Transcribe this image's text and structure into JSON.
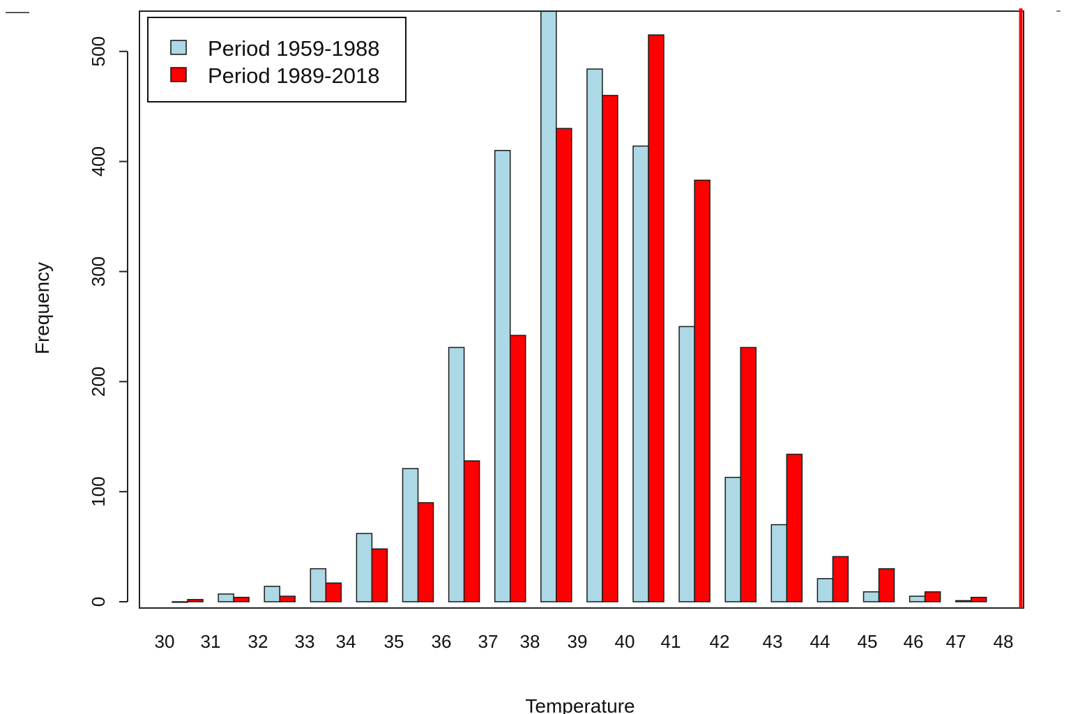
{
  "chart_data": {
    "type": "bar",
    "title": "",
    "xlabel": "Temperature",
    "ylabel": "Frequency",
    "ylim": [
      0,
      540
    ],
    "yticks": [
      0,
      100,
      200,
      300,
      400,
      500
    ],
    "bins": [
      "30-31",
      "31-32",
      "32-33",
      "33-34",
      "34-35",
      "35-36",
      "36-37",
      "37-38",
      "38-39",
      "39-40",
      "40-41",
      "41-42",
      "42-43",
      "43-44",
      "44-45",
      "45-46",
      "46-47",
      "47-48"
    ],
    "series": [
      {
        "name": "Period 1959-1988",
        "color": "#add8e6",
        "values": [
          0,
          7,
          14,
          30,
          62,
          121,
          231,
          410,
          540,
          484,
          414,
          250,
          113,
          70,
          21,
          9,
          5,
          1
        ]
      },
      {
        "name": "Period 1989-2018",
        "color": "#ff0000",
        "values": [
          2,
          4,
          5,
          17,
          48,
          90,
          128,
          242,
          430,
          460,
          515,
          383,
          231,
          134,
          41,
          30,
          9,
          4
        ]
      }
    ],
    "xtick_labels": [
      "30",
      "31",
      "32",
      "33",
      "34",
      "35",
      "36",
      "37",
      "38",
      "39",
      "40",
      "41",
      "42",
      "43",
      "44",
      "45",
      "46",
      "47",
      "48"
    ],
    "legend": {
      "position": "top-left"
    },
    "reference_line": {
      "color": "#ff0000"
    }
  }
}
